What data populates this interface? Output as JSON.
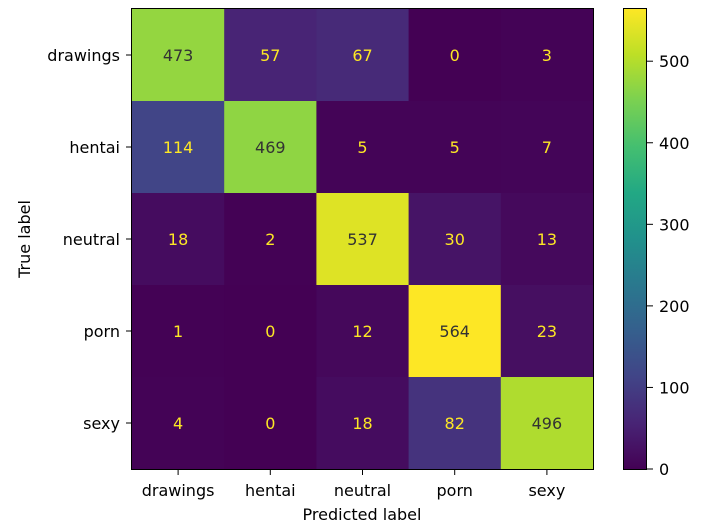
{
  "chart_data": {
    "type": "heatmap",
    "title": "",
    "xlabel": "Predicted label",
    "ylabel": "True label",
    "x_categories": [
      "drawings",
      "hentai",
      "neutral",
      "porn",
      "sexy"
    ],
    "y_categories": [
      "drawings",
      "hentai",
      "neutral",
      "porn",
      "sexy"
    ],
    "values": [
      [
        473,
        57,
        67,
        0,
        3
      ],
      [
        114,
        469,
        5,
        5,
        7
      ],
      [
        18,
        2,
        537,
        30,
        13
      ],
      [
        1,
        0,
        12,
        564,
        23
      ],
      [
        4,
        0,
        18,
        82,
        496
      ]
    ],
    "colormap": "viridis",
    "color_range": [
      0,
      564
    ],
    "colorbar_ticks": [
      0,
      100,
      200,
      300,
      400,
      500
    ],
    "text_colors": {
      "dark_cells": "#fde725",
      "light_cells": "#333333"
    },
    "grid": false
  }
}
